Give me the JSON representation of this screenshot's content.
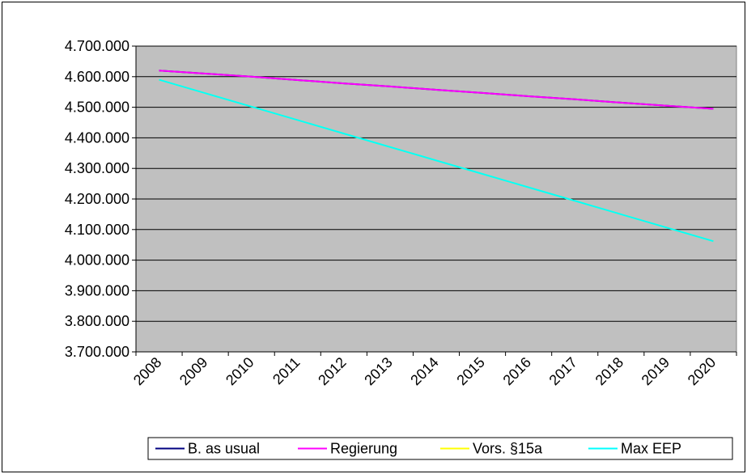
{
  "chart_data": {
    "type": "line",
    "categories": [
      "2008",
      "2009",
      "2010",
      "2011",
      "2012",
      "2013",
      "2014",
      "2015",
      "2016",
      "2017",
      "2018",
      "2019",
      "2020"
    ],
    "series": [
      {
        "name": "B. as usual",
        "color": "#000080",
        "values": [
          4620000,
          4610000,
          4600000,
          4589000,
          4578000,
          4568000,
          4557000,
          4547000,
          4536000,
          4526000,
          4515000,
          4505000,
          4495000
        ]
      },
      {
        "name": "Regierung",
        "color": "#ff00ff",
        "values": [
          4620000,
          4610000,
          4600000,
          4589000,
          4578000,
          4568000,
          4557000,
          4547000,
          4536000,
          4526000,
          4515000,
          4505000,
          4495000
        ]
      },
      {
        "name": "Vors. §15a",
        "color": "#ffff00",
        "values": [
          4590000,
          4546000,
          4502000,
          4458000,
          4414000,
          4370000,
          4326000,
          4282000,
          4238000,
          4194000,
          4150000,
          4106000,
          4062000
        ]
      },
      {
        "name": "Max EEP",
        "color": "#00ffff",
        "values": [
          4590000,
          4546000,
          4502000,
          4458000,
          4414000,
          4370000,
          4326000,
          4282000,
          4238000,
          4194000,
          4150000,
          4106000,
          4062000
        ]
      }
    ],
    "ylim": [
      3700000,
      4700000
    ],
    "yticks": [
      {
        "value": 3700000,
        "label": "3.700.000"
      },
      {
        "value": 3800000,
        "label": "3.800.000"
      },
      {
        "value": 3900000,
        "label": "3.900.000"
      },
      {
        "value": 4000000,
        "label": "4.000.000"
      },
      {
        "value": 4100000,
        "label": "4.100.000"
      },
      {
        "value": 4200000,
        "label": "4.200.000"
      },
      {
        "value": 4300000,
        "label": "4.300.000"
      },
      {
        "value": 4400000,
        "label": "4.400.000"
      },
      {
        "value": 4500000,
        "label": "4.500.000"
      },
      {
        "value": 4600000,
        "label": "4.600.000"
      },
      {
        "value": 4700000,
        "label": "4.700.000"
      }
    ],
    "grid": true,
    "legend": "bottom"
  }
}
